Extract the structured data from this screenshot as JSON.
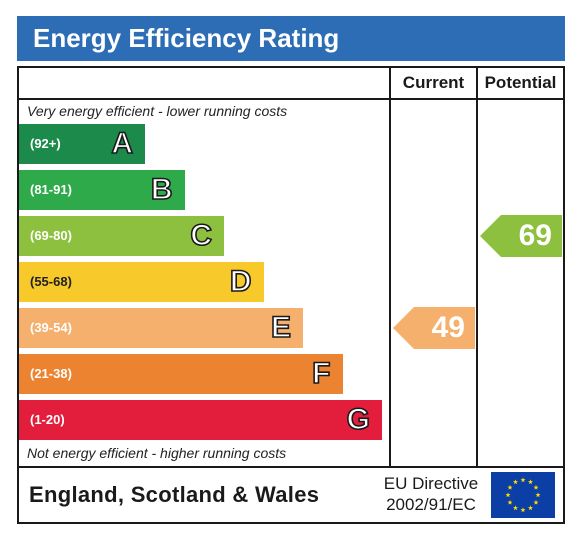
{
  "title": "Energy Efficiency Rating",
  "columns": {
    "current": "Current",
    "potential": "Potential"
  },
  "notes": {
    "top": "Very energy efficient - lower running costs",
    "bottom": "Not energy efficient - higher running costs"
  },
  "colors": {
    "title_bar": "#2d6db5",
    "A": "#1b8a4a",
    "B": "#2eaa4a",
    "C": "#8dc03f",
    "D": "#f8c92a",
    "E": "#f4b06c",
    "F": "#ec8330",
    "G": "#e31d3c",
    "eu_flag": "#0c3fa6",
    "eu_stars": "#ffdd00"
  },
  "chart_data": {
    "type": "bar",
    "categories": [
      "A",
      "B",
      "C",
      "D",
      "E",
      "F",
      "G"
    ],
    "ranges": [
      "(92+)",
      "(81-91)",
      "(69-80)",
      "(55-68)",
      "(39-54)",
      "(21-38)",
      "(1-20)"
    ],
    "current": {
      "value": 49,
      "band": "E"
    },
    "potential": {
      "value": 69,
      "band": "C"
    }
  },
  "footer": {
    "region": "England, Scotland & Wales",
    "directive_line1": "EU Directive",
    "directive_line2": "2002/91/EC"
  }
}
